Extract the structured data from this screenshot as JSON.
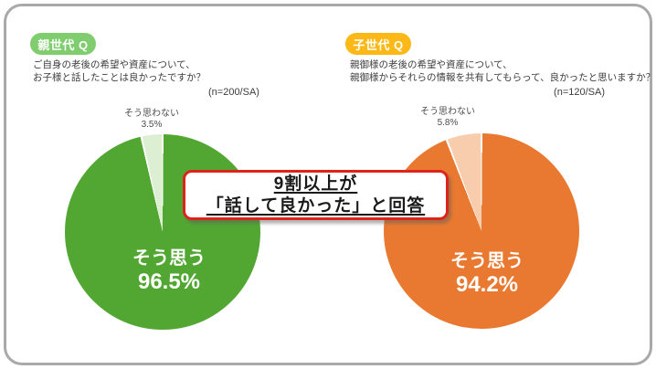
{
  "figure": {
    "panels": [
      {
        "badge": "親世代 Q",
        "badge_color": "#7fcd6e",
        "question_line1": "ご自身の老後の希望や資産について、",
        "question_line2": "お子様と話したことは良かったですか？",
        "sample": "(n=200/SA)"
      },
      {
        "badge": "子世代 Q",
        "badge_color": "#fbb817",
        "question_line1": "親御様の老後の希望や資産について、",
        "question_line2": "親御様からそれらの情報を共有してもらって、良かったと思いますか？",
        "sample": "(n=120/SA)"
      }
    ],
    "callout": {
      "line1": "9割以上が",
      "line2": "「話して良かった」と回答",
      "border_color": "#de231a"
    },
    "frame_border_color": "#a9a9a9"
  },
  "chart_data": [
    {
      "type": "pie",
      "name": "parent-generation",
      "categories": [
        "そう思う",
        "そう思わない"
      ],
      "values": [
        96.5,
        3.5
      ],
      "value_labels": [
        "96.5%",
        "3.5%"
      ],
      "colors": [
        "#52a733",
        "#dcefd2"
      ],
      "start_angle_deg": 0,
      "direction": "clockwise",
      "slice_border_color": "#ffffff",
      "legend": "none"
    },
    {
      "type": "pie",
      "name": "child-generation",
      "categories": [
        "そう思う",
        "そう思わない"
      ],
      "values": [
        94.2,
        5.8
      ],
      "value_labels": [
        "94.2%",
        "5.8%"
      ],
      "colors": [
        "#e97931",
        "#f7cdae"
      ],
      "start_angle_deg": 0,
      "direction": "clockwise",
      "slice_border_color": "#ffffff",
      "legend": "none"
    }
  ]
}
